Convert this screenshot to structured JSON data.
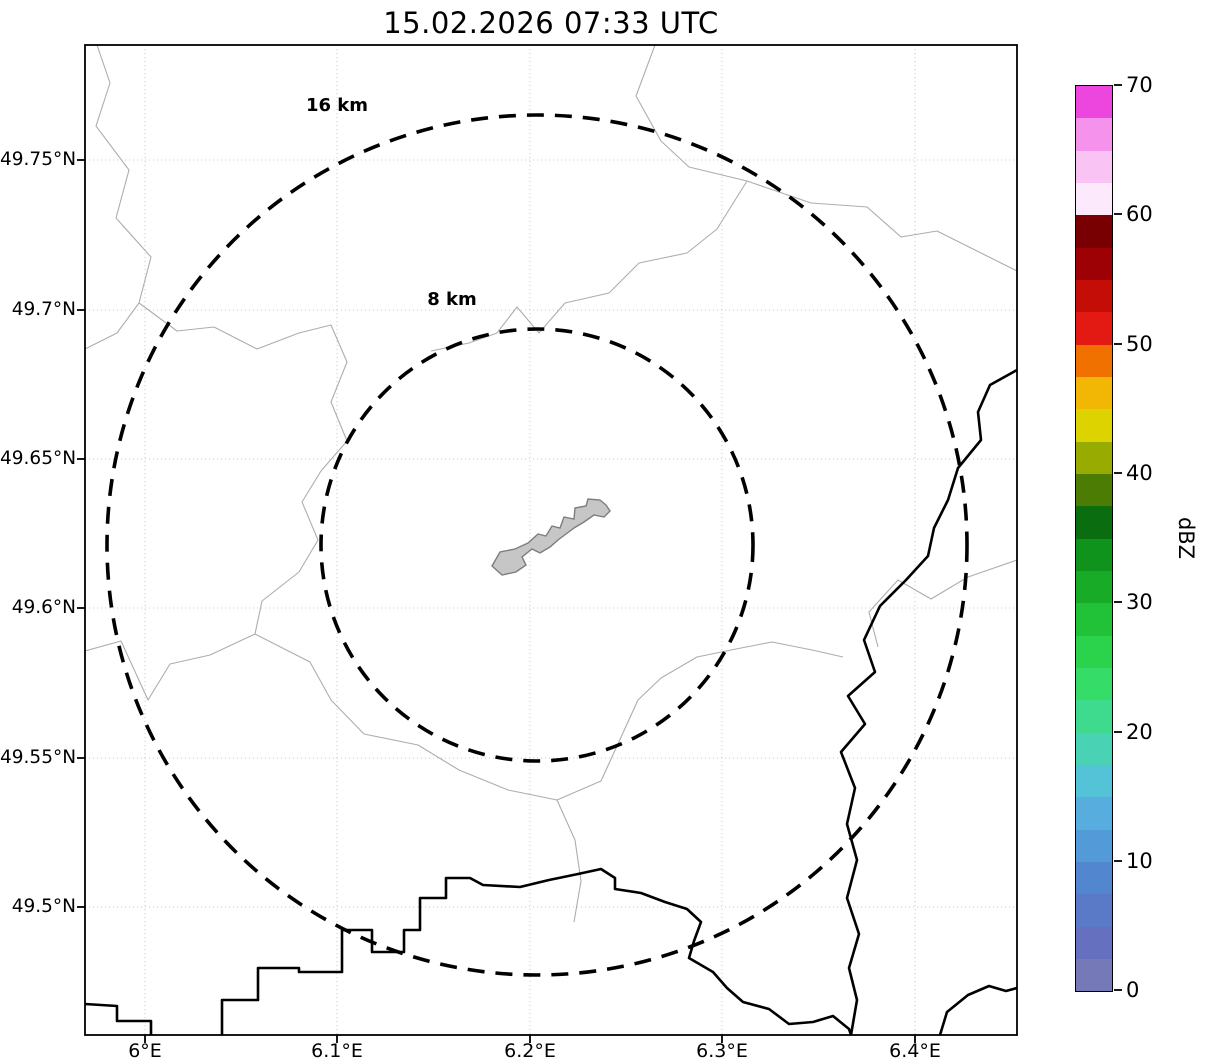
{
  "title": "15.02.2026 07:33 UTC",
  "map": {
    "x_tick_labels": [
      "6°E",
      "6.1°E",
      "6.2°E",
      "6.3°E",
      "6.4°E"
    ],
    "y_tick_labels": [
      "49.75°N",
      "49.7°N",
      "49.65°N",
      "49.6°N",
      "49.55°N",
      "49.5°N"
    ],
    "range_rings": [
      {
        "label": "16 km",
        "radius_km": 16
      },
      {
        "label": "8 km",
        "radius_km": 8
      }
    ]
  },
  "colorbar": {
    "label": "dBZ",
    "min": 0,
    "max": 70,
    "tick_labels": [
      "70",
      "60",
      "50",
      "40",
      "30",
      "20",
      "10",
      "0"
    ],
    "colors_bottom_to_top": [
      "#7679b8",
      "#6570bf",
      "#5a7ac8",
      "#5287d0",
      "#539ad9",
      "#57aede",
      "#54c3d8",
      "#49d2b4",
      "#3eda8e",
      "#35dc67",
      "#2bd24b",
      "#21c138",
      "#18ab28",
      "#10931c",
      "#0a6e10",
      "#4c7c04",
      "#98ab00",
      "#dcd300",
      "#f2b705",
      "#f07000",
      "#e31a13",
      "#c50d08",
      "#9d0005",
      "#790002",
      "#fce9fb",
      "#f9c4f4",
      "#f492ec",
      "#ec46df"
    ]
  },
  "chart_data": {
    "type": "map",
    "title": "15.02.2026 07:33 UTC",
    "x_ticks": [
      "6°E",
      "6.1°E",
      "6.2°E",
      "6.3°E",
      "6.4°E"
    ],
    "y_ticks": [
      "49.75°N",
      "49.7°N",
      "49.65°N",
      "49.6°N",
      "49.55°N",
      "49.5°N"
    ],
    "range_rings_km": [
      8,
      16
    ],
    "colorbar": {
      "label": "dBZ",
      "ticks": [
        0,
        10,
        20,
        30,
        40,
        50,
        60,
        70
      ],
      "range": [
        0,
        70
      ]
    },
    "legend_position": "right",
    "grid": true
  }
}
